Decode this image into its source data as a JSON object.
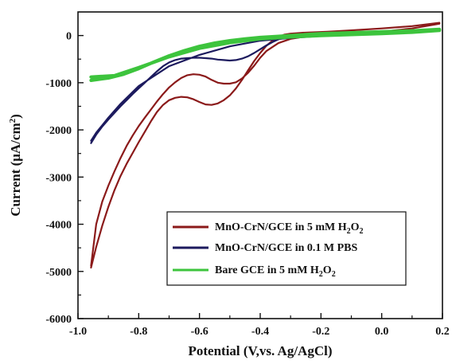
{
  "chart_data": {
    "type": "line",
    "title": "",
    "xlabel": "Potential (V,vs. Ag/AgCl)",
    "ylabel_main": "Current (μA/cm",
    "ylabel_sup": "2",
    "ylabel_close": ")",
    "xlim": [
      -1.0,
      0.2
    ],
    "ylim": [
      -6000,
      500
    ],
    "xticks": [
      -1.0,
      -0.8,
      -0.6,
      -0.4,
      -0.2,
      0.0,
      0.2
    ],
    "xtick_labels": [
      "-1.0",
      "-0.8",
      "-0.6",
      "-0.4",
      "-0.2",
      "0.0",
      "0.2"
    ],
    "yticks": [
      0,
      -1000,
      -2000,
      -3000,
      -4000,
      -5000,
      -6000
    ],
    "ytick_labels": [
      "0",
      "-1000",
      "-2000",
      "-3000",
      "-4000",
      "-5000",
      "-6000"
    ],
    "grid": false,
    "legend_position": "bottom-right",
    "series": [
      {
        "name_main": "MnO-CrN/GCE in 5 mM H",
        "name_sub1": "2",
        "name_mid": "O",
        "name_sub2": "2",
        "color": "#8b1a1a",
        "x": [
          -0.957,
          -0.94,
          -0.92,
          -0.9,
          -0.88,
          -0.86,
          -0.84,
          -0.82,
          -0.8,
          -0.78,
          -0.76,
          -0.74,
          -0.72,
          -0.7,
          -0.68,
          -0.66,
          -0.64,
          -0.62,
          -0.6,
          -0.58,
          -0.56,
          -0.54,
          -0.52,
          -0.5,
          -0.48,
          -0.46,
          -0.44,
          -0.42,
          -0.4,
          -0.38,
          -0.36,
          -0.34,
          -0.32,
          -0.3,
          -0.28,
          -0.26,
          -0.22,
          -0.18,
          -0.1,
          0.0,
          0.1,
          0.19,
          0.19,
          0.1,
          0.0,
          -0.1,
          -0.2,
          -0.26,
          -0.3,
          -0.34,
          -0.38,
          -0.4,
          -0.42,
          -0.44,
          -0.46,
          -0.48,
          -0.5,
          -0.52,
          -0.54,
          -0.56,
          -0.58,
          -0.6,
          -0.62,
          -0.64,
          -0.66,
          -0.68,
          -0.7,
          -0.72,
          -0.74,
          -0.76,
          -0.78,
          -0.8,
          -0.82,
          -0.84,
          -0.86,
          -0.88,
          -0.9,
          -0.92,
          -0.94,
          -0.957
        ],
        "y": [
          -4920,
          -4480,
          -4030,
          -3630,
          -3280,
          -2980,
          -2720,
          -2490,
          -2260,
          -2040,
          -1820,
          -1620,
          -1470,
          -1370,
          -1320,
          -1300,
          -1310,
          -1350,
          -1410,
          -1460,
          -1470,
          -1440,
          -1370,
          -1270,
          -1120,
          -940,
          -740,
          -540,
          -370,
          -220,
          -110,
          -30,
          20,
          40,
          50,
          60,
          70,
          80,
          110,
          150,
          200,
          270,
          250,
          150,
          80,
          30,
          0,
          -30,
          -70,
          -160,
          -330,
          -470,
          -640,
          -790,
          -910,
          -990,
          -1020,
          -1020,
          -1000,
          -940,
          -870,
          -830,
          -820,
          -840,
          -900,
          -990,
          -1100,
          -1240,
          -1400,
          -1570,
          -1740,
          -1920,
          -2120,
          -2340,
          -2600,
          -2880,
          -3180,
          -3520,
          -4000,
          -4880
        ]
      },
      {
        "name_main": "MnO-CrN/GCE in 0.1 M PBS",
        "color": "#1c1a5e",
        "x": [
          -0.957,
          -0.94,
          -0.92,
          -0.9,
          -0.88,
          -0.86,
          -0.84,
          -0.82,
          -0.8,
          -0.78,
          -0.76,
          -0.74,
          -0.72,
          -0.7,
          -0.68,
          -0.66,
          -0.64,
          -0.62,
          -0.6,
          -0.58,
          -0.56,
          -0.54,
          -0.52,
          -0.5,
          -0.48,
          -0.46,
          -0.44,
          -0.42,
          -0.4,
          -0.38,
          -0.36,
          -0.34,
          -0.32,
          -0.3,
          -0.26,
          -0.2,
          -0.1,
          0.0,
          0.1,
          0.19,
          0.19,
          0.1,
          0.0,
          -0.1,
          -0.2,
          -0.3,
          -0.4,
          -0.5,
          -0.6,
          -0.7,
          -0.8,
          -0.86,
          -0.9,
          -0.94,
          -0.957
        ],
        "y": [
          -2280,
          -2100,
          -1930,
          -1780,
          -1640,
          -1500,
          -1370,
          -1240,
          -1120,
          -1000,
          -880,
          -760,
          -650,
          -570,
          -520,
          -490,
          -480,
          -470,
          -470,
          -480,
          -490,
          -510,
          -520,
          -530,
          -520,
          -490,
          -440,
          -370,
          -290,
          -210,
          -140,
          -80,
          -40,
          -10,
          20,
          50,
          70,
          90,
          110,
          140,
          120,
          80,
          40,
          10,
          -10,
          -50,
          -110,
          -230,
          -410,
          -650,
          -1070,
          -1450,
          -1740,
          -2060,
          -2230
        ]
      },
      {
        "name_main": "Bare GCE in 5 mM H",
        "name_sub1": "2",
        "name_mid": "O",
        "name_sub2": "2",
        "color": "#3dc43d",
        "x": [
          -0.957,
          -0.9,
          -0.85,
          -0.8,
          -0.75,
          -0.7,
          -0.65,
          -0.6,
          -0.55,
          -0.5,
          -0.45,
          -0.4,
          -0.35,
          -0.3,
          -0.25,
          -0.2,
          -0.1,
          0.0,
          0.1,
          0.19,
          0.19,
          0.1,
          0.0,
          -0.1,
          -0.2,
          -0.3,
          -0.4,
          -0.5,
          -0.6,
          -0.7,
          -0.8,
          -0.88,
          -0.957
        ],
        "y": [
          -950,
          -900,
          -820,
          -700,
          -560,
          -430,
          -320,
          -230,
          -160,
          -110,
          -70,
          -40,
          -20,
          0,
          20,
          40,
          60,
          80,
          100,
          130,
          110,
          70,
          40,
          20,
          0,
          -30,
          -70,
          -150,
          -270,
          -450,
          -680,
          -850,
          -880
        ]
      }
    ]
  }
}
